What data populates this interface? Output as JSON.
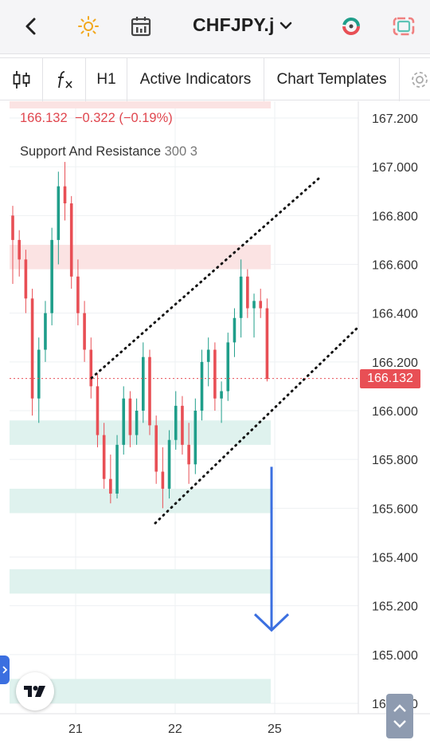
{
  "header": {
    "back_icon": "chevron-left-icon",
    "theme_icon": "sun-icon",
    "calendar_icon": "calendar-icon",
    "symbol": "CHFJPY.j",
    "symbol_dropdown_icon": "chevron-down-icon",
    "trade_icon": "trade-circle-icon",
    "layout_icon": "fullscreen-icon"
  },
  "toolbar": {
    "chart_type_icon": "candles-icon",
    "fx_icon": "function-icon",
    "interval": "H1",
    "indicators": "Active Indicators",
    "templates": "Chart Templates",
    "settings_icon": "gear-icon"
  },
  "legend": {
    "price": "166.132",
    "change": "−0.322",
    "change_pct": "(−0.19%)",
    "indicator_name": "Support And Resistance",
    "indicator_params": "300 3"
  },
  "price_axis": [
    "167.200",
    "167.000",
    "166.800",
    "166.600",
    "166.400",
    "166.200",
    "166.000",
    "165.800",
    "165.600",
    "165.400",
    "165.200",
    "165.000",
    "164.800"
  ],
  "current_price": "166.132",
  "time_axis": [
    "21",
    "22",
    "25"
  ],
  "colors": {
    "up": "#1f9e8a",
    "down": "#e84f55",
    "support_zone": "#dff2ee",
    "resistance_zone": "#fbe3e3",
    "arrow": "#3b6fe0"
  },
  "chart_data": {
    "type": "candlestick",
    "ylim": [
      164.78,
      167.25
    ],
    "xlabel": "",
    "ylabel": "",
    "resistance_zones": [
      [
        166.58,
        166.68
      ]
    ],
    "support_zones": [
      [
        165.86,
        165.96
      ],
      [
        165.58,
        165.68
      ],
      [
        165.25,
        165.35
      ],
      [
        164.8,
        164.9
      ]
    ],
    "channel_upper": [
      {
        "x": "20 22:00",
        "y": 166.13
      },
      {
        "x": "25 03:00",
        "y": 166.95
      }
    ],
    "channel_lower": [
      {
        "x": "21 19:00",
        "y": 165.53
      },
      {
        "x": "25 06:00",
        "y": 166.35
      }
    ],
    "projection_arrow": {
      "from": 165.77,
      "to": 165.1
    },
    "candles": [
      [
        166.8,
        166.84,
        166.52,
        166.7
      ],
      [
        166.7,
        166.74,
        166.55,
        166.62
      ],
      [
        166.62,
        166.66,
        166.4,
        166.46
      ],
      [
        166.46,
        166.5,
        165.98,
        166.05
      ],
      [
        166.05,
        166.3,
        165.95,
        166.25
      ],
      [
        166.25,
        166.45,
        166.2,
        166.4
      ],
      [
        166.4,
        166.75,
        166.35,
        166.7
      ],
      [
        166.7,
        166.98,
        166.6,
        166.92
      ],
      [
        166.92,
        167.02,
        166.78,
        166.85
      ],
      [
        166.85,
        166.88,
        166.5,
        166.55
      ],
      [
        166.55,
        166.62,
        166.35,
        166.4
      ],
      [
        166.4,
        166.45,
        166.2,
        166.25
      ],
      [
        166.25,
        166.3,
        166.05,
        166.1
      ],
      [
        166.1,
        166.15,
        165.85,
        165.9
      ],
      [
        165.9,
        165.95,
        165.68,
        165.72
      ],
      [
        165.72,
        165.82,
        165.62,
        165.66
      ],
      [
        165.66,
        165.9,
        165.64,
        165.86
      ],
      [
        165.86,
        166.1,
        165.82,
        166.05
      ],
      [
        166.05,
        166.08,
        165.85,
        165.9
      ],
      [
        165.9,
        166.05,
        165.86,
        166.0
      ],
      [
        166.0,
        166.28,
        165.95,
        166.22
      ],
      [
        166.22,
        166.25,
        165.9,
        165.94
      ],
      [
        165.94,
        165.98,
        165.7,
        165.75
      ],
      [
        165.75,
        165.85,
        165.6,
        165.68
      ],
      [
        165.68,
        165.92,
        165.64,
        165.88
      ],
      [
        165.88,
        166.08,
        165.84,
        166.02
      ],
      [
        166.02,
        166.06,
        165.82,
        165.86
      ],
      [
        165.86,
        165.95,
        165.7,
        165.78
      ],
      [
        165.78,
        166.05,
        165.74,
        166.0
      ],
      [
        166.0,
        166.25,
        165.96,
        166.2
      ],
      [
        166.2,
        166.3,
        166.1,
        166.25
      ],
      [
        166.25,
        166.28,
        166.0,
        166.05
      ],
      [
        166.05,
        166.12,
        165.95,
        166.08
      ],
      [
        166.08,
        166.32,
        166.04,
        166.28
      ],
      [
        166.28,
        166.42,
        166.22,
        166.38
      ],
      [
        166.38,
        166.62,
        166.3,
        166.55
      ],
      [
        166.55,
        166.58,
        166.38,
        166.42
      ],
      [
        166.42,
        166.48,
        166.3,
        166.45
      ],
      [
        166.45,
        166.5,
        166.38,
        166.42
      ],
      [
        166.42,
        166.46,
        166.12,
        166.13
      ]
    ]
  },
  "left_tab_icon": "chevron-right-icon",
  "logo": "tradingview-logo",
  "scroll_icon": "chevron-up-down-icon"
}
